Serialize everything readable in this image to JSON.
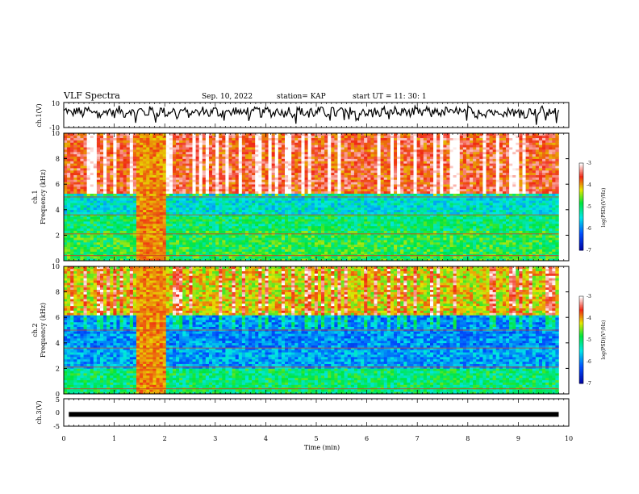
{
  "header": {
    "title": "VLF Spectra",
    "date": "Sep. 10, 2022",
    "station": "station= KAP",
    "start_ut": "start  UT =   11: 30: 1"
  },
  "chart_data": [
    {
      "type": "line",
      "panel": "ch1",
      "ylabel": "ch.1(V)",
      "ylim": [
        -10,
        10
      ],
      "yticks": [
        "10",
        "-10"
      ],
      "x_range_min": [
        0,
        9.8
      ],
      "note_values": "noisy waveform oscillating around ~3 V"
    },
    {
      "type": "heatmap",
      "panel": "ch1-spectrogram",
      "ylabel": "ch.1\nFrequency (kHz)",
      "ylabel_lines": [
        "ch.1",
        "Frequency (kHz)"
      ],
      "ylim": [
        0,
        10
      ],
      "yticks": [
        "0",
        "2",
        "4",
        "6",
        "8",
        "10"
      ],
      "colorbar": {
        "label": "log(PSD)(V²/Hz)",
        "ticks": [
          "-3",
          "-4",
          "-5",
          "-6",
          "-7"
        ],
        "range": [
          -7,
          -3
        ]
      },
      "bands": [
        {
          "name": "lower",
          "fmin": 0,
          "fmax": 2.3,
          "level": -4.8
        },
        {
          "name": "mid",
          "fmin": 2.3,
          "fmax": 3.7,
          "level": -5.0
        },
        {
          "name": "quiet",
          "fmin": 3.7,
          "fmax": 5.2,
          "level": -5.4
        },
        {
          "name": "upper",
          "fmin": 5.2,
          "fmax": 10,
          "level": -3.6
        }
      ],
      "burst_min": [
        1.4,
        2.0
      ]
    },
    {
      "type": "heatmap",
      "panel": "ch2-spectrogram",
      "ylabel": "ch.2\nFrequency (kHz)",
      "ylabel_lines": [
        "ch.2",
        "Frequency (kHz)"
      ],
      "ylim": [
        0,
        10
      ],
      "yticks": [
        "0",
        "2",
        "4",
        "6",
        "8",
        "10"
      ],
      "colorbar": {
        "label": "log(PSD)(V²/Hz)",
        "ticks": [
          "-3",
          "-4",
          "-5",
          "-6",
          "-7"
        ],
        "range": [
          -7,
          -3
        ]
      },
      "bands": [
        {
          "name": "lower",
          "fmin": 0,
          "fmax": 2.0,
          "level": -5.0
        },
        {
          "name": "mid",
          "fmin": 2.0,
          "fmax": 3.6,
          "level": -5.8
        },
        {
          "name": "quiet",
          "fmin": 3.6,
          "fmax": 6.2,
          "level": -5.9
        },
        {
          "name": "upper",
          "fmin": 6.2,
          "fmax": 10,
          "level": -4.2
        }
      ],
      "burst_min": [
        1.4,
        2.0
      ]
    },
    {
      "type": "line",
      "panel": "ch3",
      "ylabel": "ch.3(V)",
      "ylim": [
        -5,
        5
      ],
      "yticks": [
        "5",
        "0",
        "-5"
      ],
      "value": -0.7,
      "x_range_min": [
        0.1,
        9.8
      ]
    }
  ],
  "xaxis": {
    "label": "Time  (min)",
    "ticks": [
      "0",
      "1",
      "2",
      "3",
      "4",
      "5",
      "6",
      "7",
      "8",
      "9",
      "10"
    ],
    "range": [
      0,
      10
    ]
  },
  "colors": {
    "bg": "#ffffff",
    "line": "#000000"
  }
}
